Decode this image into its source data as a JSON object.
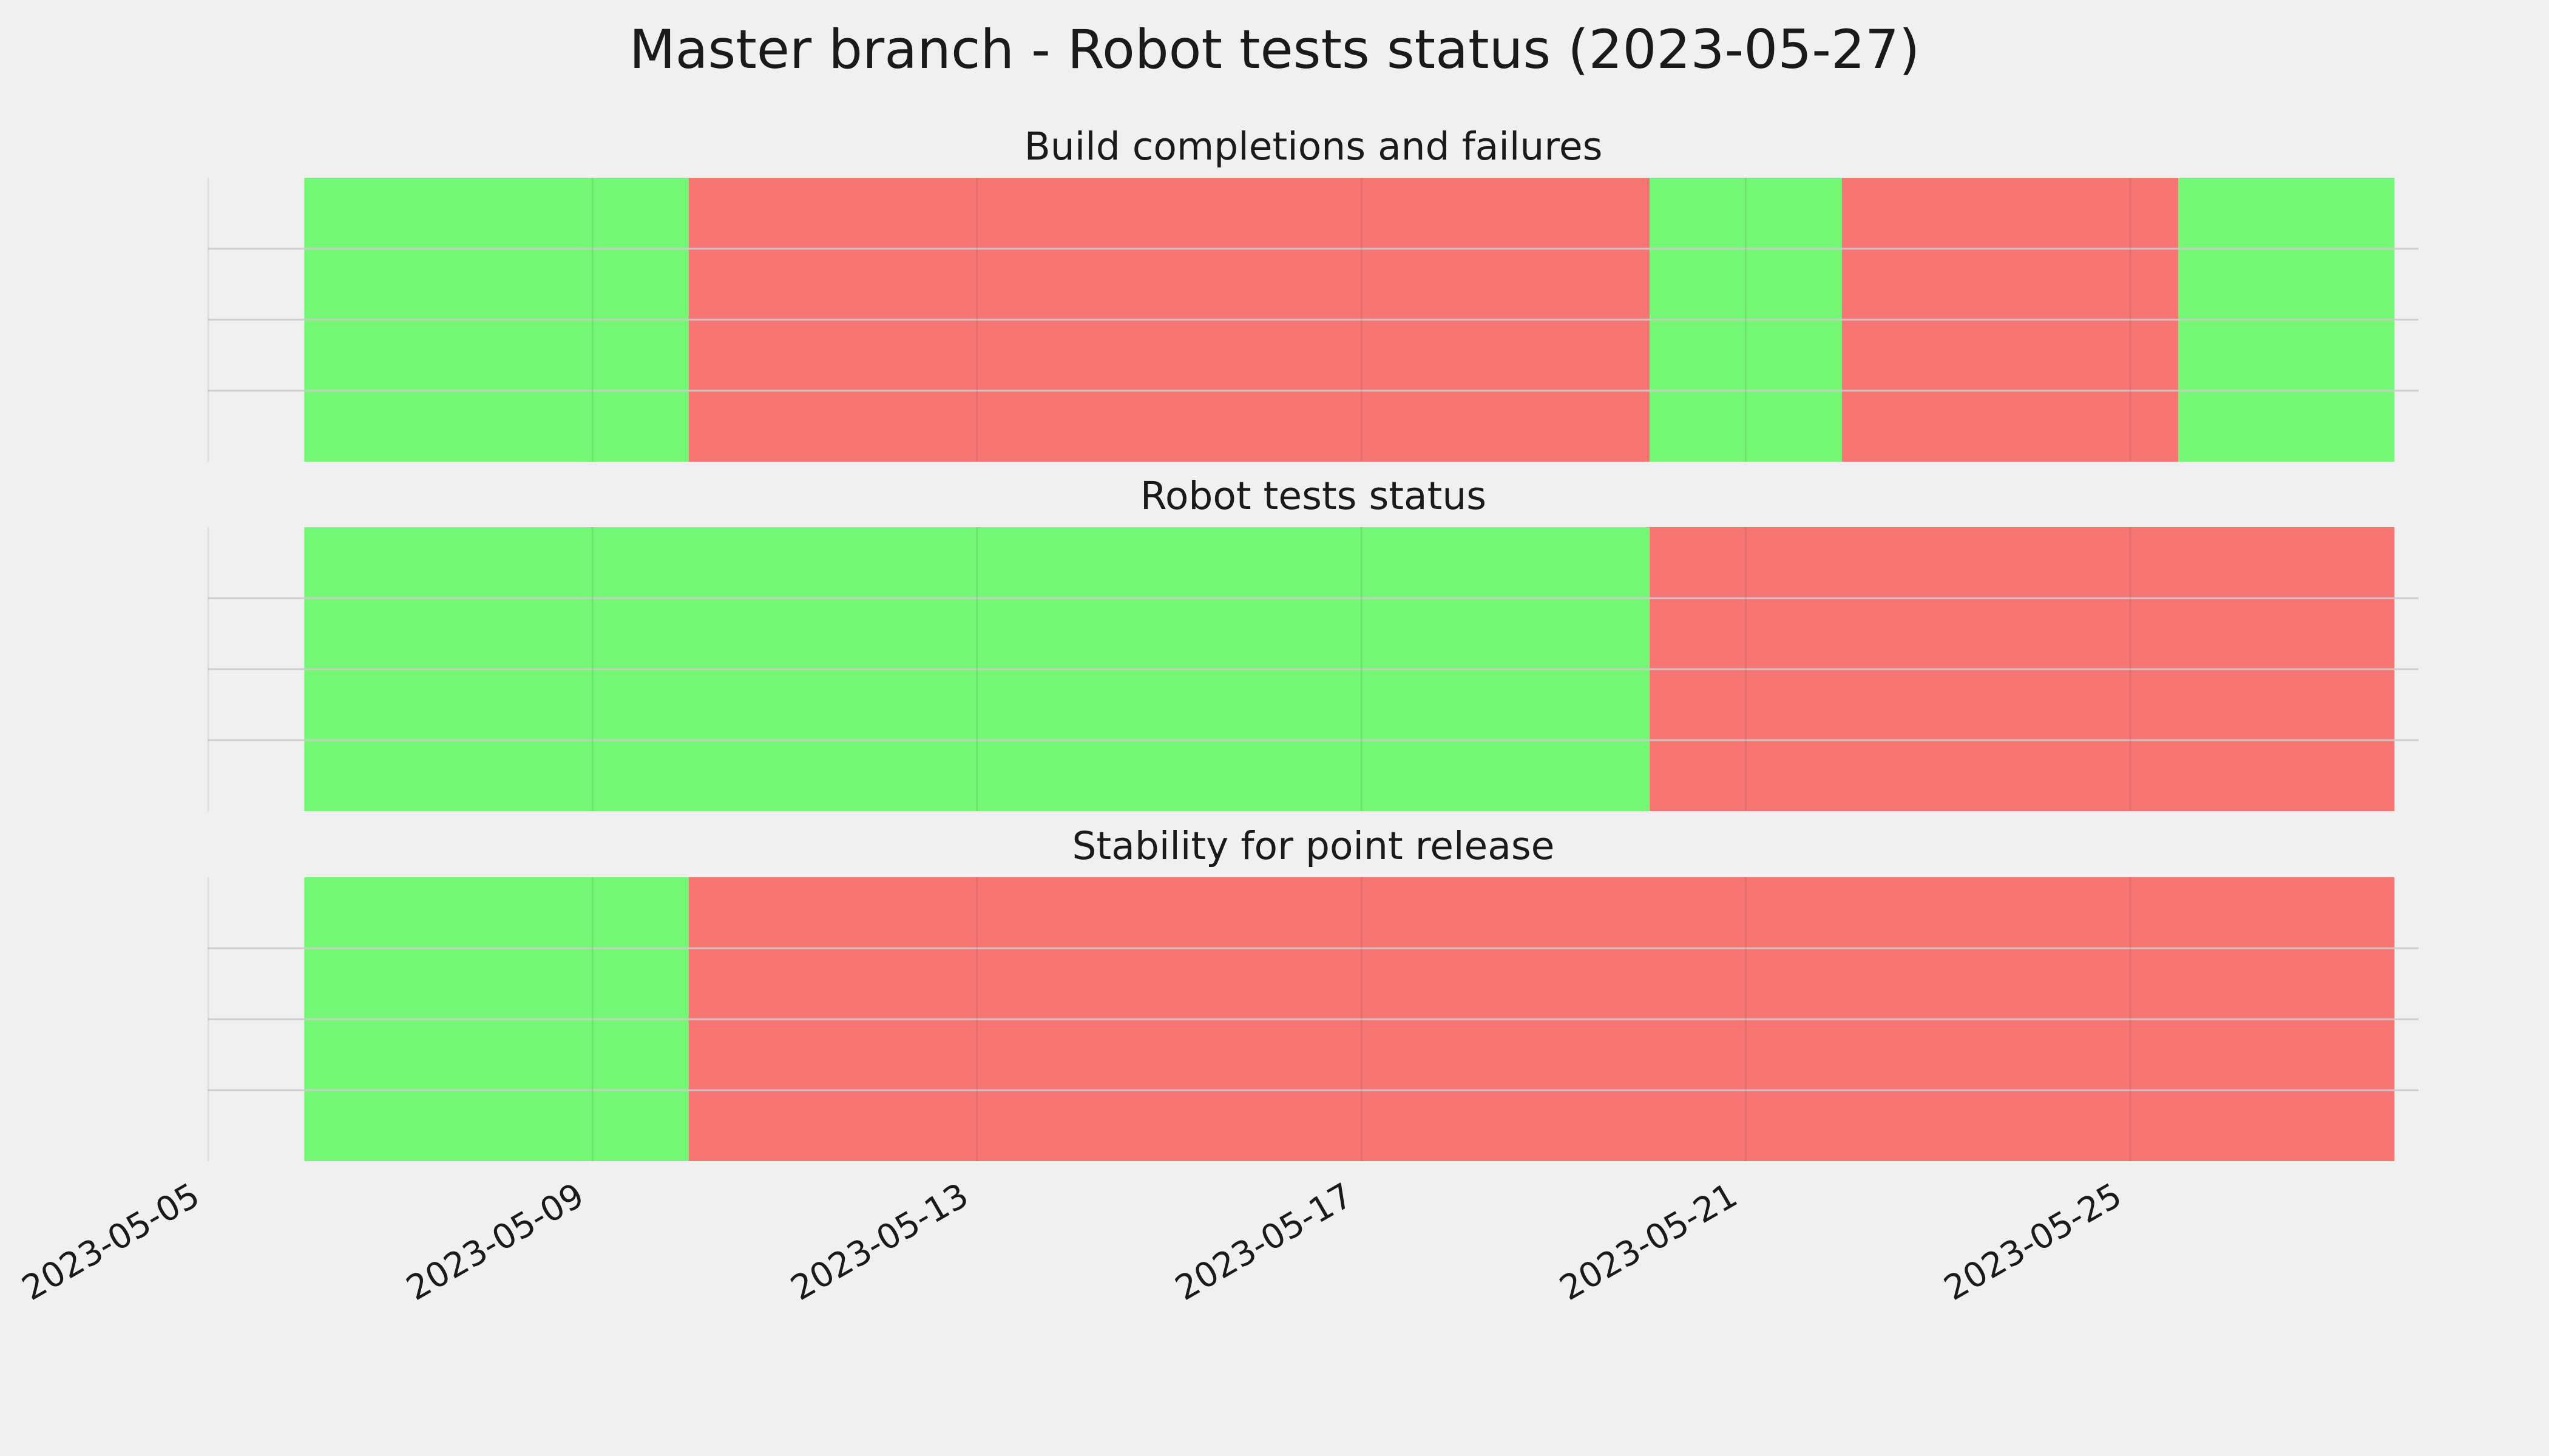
{
  "chart_data": {
    "type": "timeline",
    "title": "Master branch - Robot tests status (2023-05-27)",
    "x_axis": {
      "type": "date",
      "ticks": [
        "2023-05-05",
        "2023-05-09",
        "2023-05-13",
        "2023-05-17",
        "2023-05-21",
        "2023-05-25"
      ],
      "range": [
        "2023-05-05",
        "2023-05-28"
      ],
      "grid": true
    },
    "y_axis": {
      "range": [
        0,
        4
      ],
      "ticks": [
        1,
        2,
        3
      ],
      "tick_labels": "hidden",
      "grid": true
    },
    "colors": {
      "pass": "#74f774",
      "fail": "#f77674",
      "background": "#f0f0f0",
      "grid": "#cbcbcb"
    },
    "panels": [
      {
        "title": "Build completions and failures",
        "segments": [
          {
            "start": "2023-05-06",
            "end": "2023-05-10",
            "status": "pass"
          },
          {
            "start": "2023-05-10",
            "end": "2023-05-20",
            "status": "fail"
          },
          {
            "start": "2023-05-20",
            "end": "2023-05-22",
            "status": "pass"
          },
          {
            "start": "2023-05-22",
            "end": "2023-05-25 12:00",
            "status": "fail"
          },
          {
            "start": "2023-05-25 12:00",
            "end": "2023-05-27 18:00",
            "status": "pass"
          }
        ]
      },
      {
        "title": "Robot tests status",
        "segments": [
          {
            "start": "2023-05-06",
            "end": "2023-05-20",
            "status": "pass"
          },
          {
            "start": "2023-05-20",
            "end": "2023-05-27 18:00",
            "status": "fail"
          }
        ]
      },
      {
        "title": "Stability for point release",
        "segments": [
          {
            "start": "2023-05-06",
            "end": "2023-05-10",
            "status": "pass"
          },
          {
            "start": "2023-05-10",
            "end": "2023-05-27 18:00",
            "status": "fail"
          }
        ]
      }
    ]
  }
}
